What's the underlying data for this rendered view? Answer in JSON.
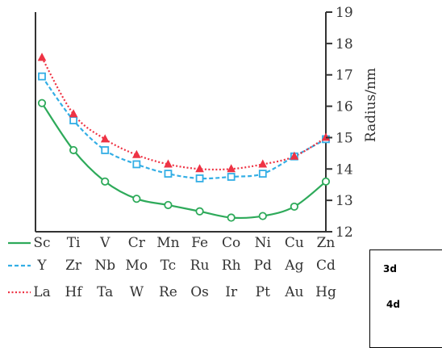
{
  "chart_data": {
    "type": "line",
    "ylabel": "Radius/nm",
    "ylim": [
      12,
      19
    ],
    "yticks": [
      "12",
      "13",
      "14",
      "15",
      "16",
      "17",
      "18",
      "19"
    ],
    "ytick_values": [
      12,
      13,
      14,
      15,
      16,
      17,
      18,
      19
    ],
    "category_rows": [
      [
        "Sc",
        "Ti",
        "V",
        "Cr",
        "Mn",
        "Fe",
        "Co",
        "Ni",
        "Cu",
        "Zn"
      ],
      [
        "Y",
        "Zr",
        "Nb",
        "Mo",
        "Tc",
        "Ru",
        "Rh",
        "Pd",
        "Ag",
        "Cd"
      ],
      [
        "La",
        "Hf",
        "Ta",
        "W",
        "Re",
        "Os",
        "Ir",
        "Pt",
        "Au",
        "Hg"
      ]
    ],
    "series": [
      {
        "color": "#2eaa5a",
        "line": "solid",
        "marker": "circle",
        "values": [
          16.1,
          14.6,
          13.6,
          13.05,
          12.85,
          12.65,
          12.45,
          12.5,
          12.8,
          13.6
        ]
      },
      {
        "color": "#33aee5",
        "line": "dashed",
        "marker": "square",
        "values": [
          16.95,
          15.55,
          14.6,
          14.15,
          13.85,
          13.7,
          13.75,
          13.85,
          14.4,
          14.95
        ]
      },
      {
        "color": "#ee3344",
        "line": "dotted",
        "marker": "triangle",
        "values": [
          17.55,
          15.75,
          14.95,
          14.45,
          14.15,
          14.0,
          14.0,
          14.15,
          14.4,
          15.0
        ]
      }
    ],
    "grid": false
  },
  "annotation_box": {
    "line1": "3d",
    "line2": "4d"
  }
}
